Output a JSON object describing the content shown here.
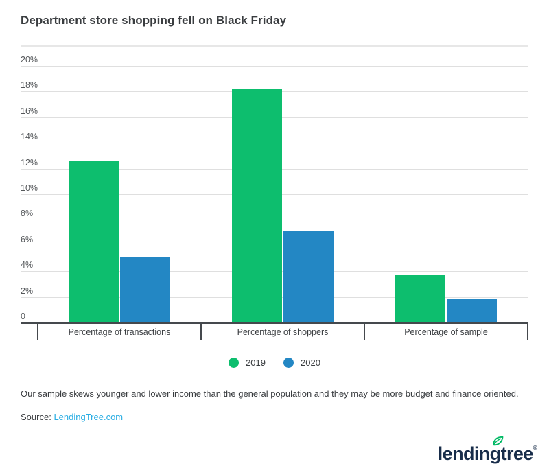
{
  "title": "Department store shopping fell on Black Friday",
  "chart_data": {
    "type": "bar",
    "categories": [
      "Percentage of transactions",
      "Percentage of shoppers",
      "Percentage of sample"
    ],
    "series": [
      {
        "name": "2019",
        "color": "#0dbe6e",
        "values": [
          12.6,
          18.2,
          3.7
        ]
      },
      {
        "name": "2020",
        "color": "#2387c4",
        "values": [
          5.1,
          7.1,
          1.8
        ]
      }
    ],
    "title": "Department store shopping fell on Black Friday",
    "xlabel": "",
    "ylabel": "",
    "ylim": [
      0,
      20
    ],
    "ytick_step": 2,
    "ytick_labels": [
      "0",
      "2%",
      "4%",
      "6%",
      "8%",
      "10%",
      "12%",
      "14%",
      "16%",
      "18%",
      "20%"
    ],
    "grid": true,
    "legend_position": "bottom"
  },
  "footnote": "Our sample skews younger and lower income than the general population and they may be more budget and finance oriented.",
  "source": {
    "label": "Source:",
    "link_text": "LendingTree.com",
    "link_color": "#29ade3"
  },
  "logo": {
    "text": "lendingtree",
    "reg_mark": "®",
    "text_color": "#182d4a",
    "leaf_color": "#00b964"
  },
  "colors": {
    "grid": "#dfdfdf",
    "axis": "#45494d",
    "tick_label": "#55585b"
  }
}
